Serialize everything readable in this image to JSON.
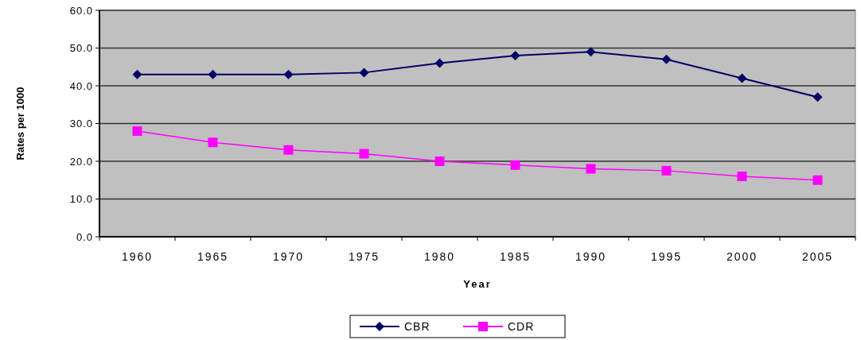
{
  "chart_data": {
    "type": "line",
    "categories": [
      "1960",
      "1965",
      "1970",
      "1975",
      "1980",
      "1985",
      "1990",
      "1995",
      "2000",
      "2005"
    ],
    "xlabel": "Year",
    "ylabel": "Rates per 1000",
    "ylim": [
      0,
      60
    ],
    "yticks": [
      {
        "value": 0,
        "label": "0.0"
      },
      {
        "value": 10,
        "label": "10.0"
      },
      {
        "value": 20,
        "label": "20.0"
      },
      {
        "value": 30,
        "label": "30.0"
      },
      {
        "value": 40,
        "label": "40.0"
      },
      {
        "value": 50,
        "label": "50.0"
      },
      {
        "value": 60,
        "label": "60.0"
      }
    ],
    "grid": "y",
    "legend": "bottom",
    "series": [
      {
        "name": "CBR",
        "color": "#000066",
        "marker": "diamond",
        "values": [
          43,
          43,
          43,
          43.5,
          46,
          48,
          49,
          47,
          42,
          37
        ]
      },
      {
        "name": "CDR",
        "color": "#ff00ff",
        "marker": "square",
        "values": [
          28,
          25,
          23,
          22,
          20,
          19,
          18,
          17.5,
          16,
          15
        ]
      }
    ]
  }
}
